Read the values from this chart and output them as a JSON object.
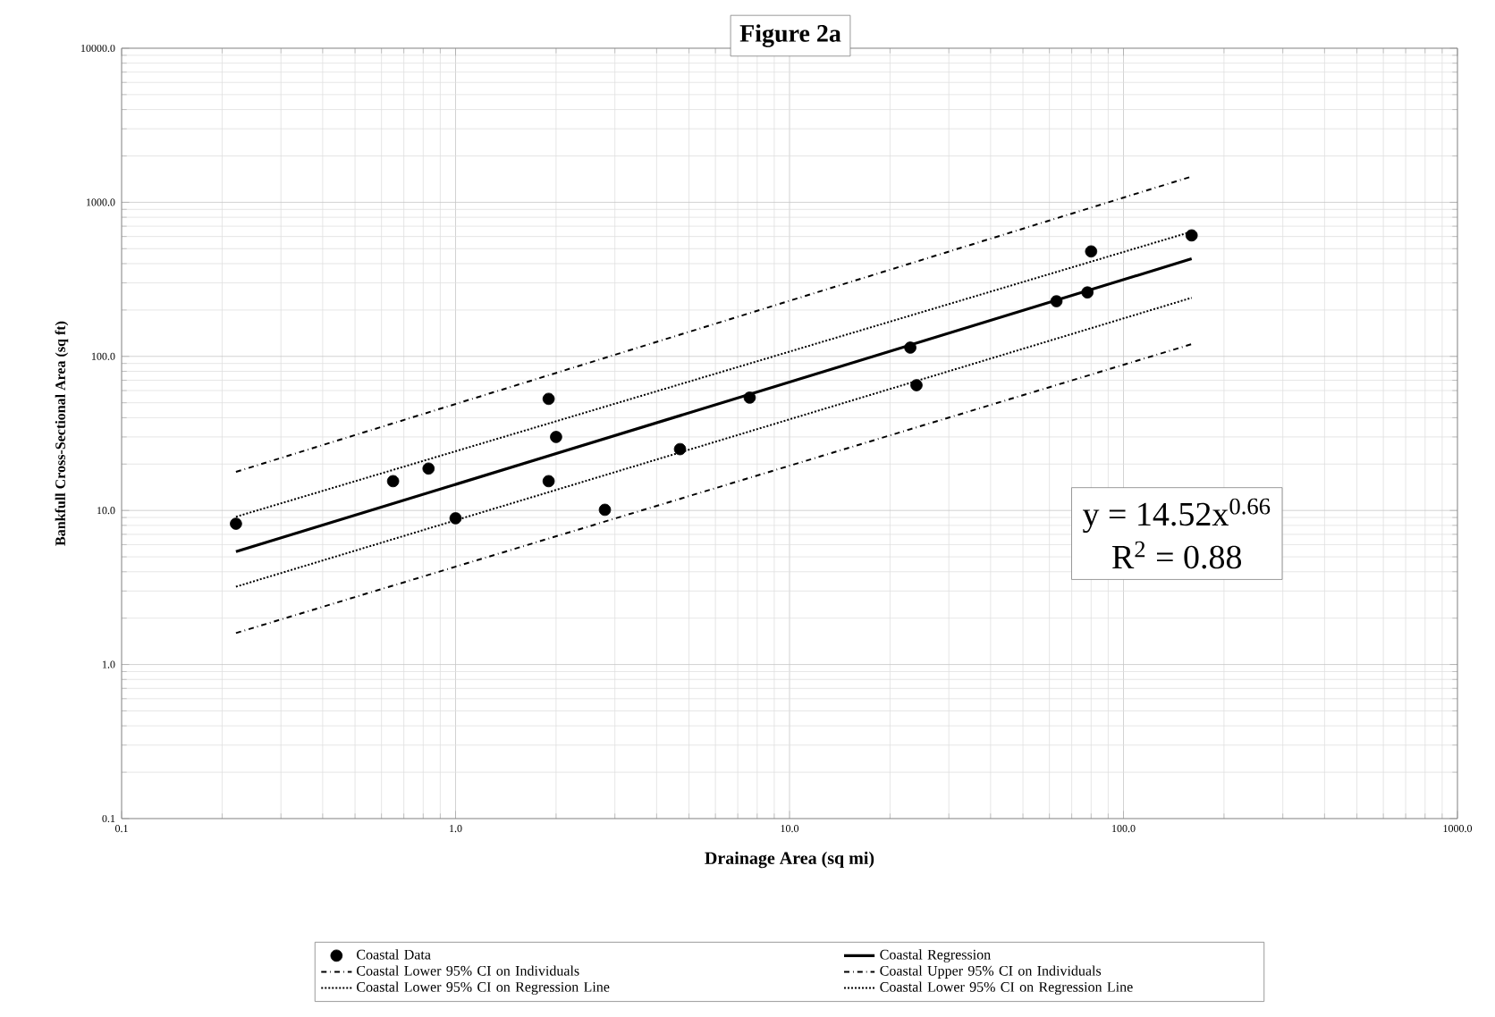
{
  "chart_data": {
    "type": "scatter",
    "title": "Figure 2a",
    "xlabel": "Drainage Area (sq mi)",
    "ylabel": "Bankfull Cross-Sectional Area (sq ft)",
    "log": "xy",
    "xlim": [
      0.1,
      1000
    ],
    "ylim": [
      0.1,
      10000
    ],
    "xticks": [
      {
        "value": 0.1,
        "label": "0.1"
      },
      {
        "value": 1,
        "label": "1.0"
      },
      {
        "value": 10,
        "label": "10.0"
      },
      {
        "value": 100,
        "label": "100.0"
      },
      {
        "value": 1000,
        "label": "1000.0"
      }
    ],
    "yticks": [
      {
        "value": 0.1,
        "label": "0.1"
      },
      {
        "value": 1,
        "label": "1.0"
      },
      {
        "value": 10,
        "label": "10.0"
      },
      {
        "value": 100,
        "label": "100.0"
      },
      {
        "value": 1000,
        "label": "1000.0"
      },
      {
        "value": 10000,
        "label": "10000.0"
      }
    ],
    "grid": true,
    "legend": "bottom",
    "annotations": [
      "y = 14.52x$^{0.66}$",
      "R$^{2}$ = 0.88"
    ],
    "series": [
      {
        "name": "Coastal Data",
        "marker": "circle",
        "color": "#000000",
        "x": [
          0.22,
          0.65,
          0.83,
          1.0,
          1.9,
          2.0,
          1.9,
          2.8,
          4.7,
          7.6,
          23,
          24,
          63,
          80,
          78,
          160
        ],
        "values": [
          8.2,
          15.5,
          18.7,
          8.9,
          53,
          30,
          15.5,
          10.1,
          25,
          54,
          114,
          65,
          228,
          480,
          260,
          610
        ]
      },
      {
        "name": "Coastal Regression",
        "type": "line",
        "line_style": "solid",
        "color": "#000000",
        "x": [
          0.22,
          160
        ],
        "values": [
          5.4,
          430
        ]
      },
      {
        "name": "Coastal Lower 95% CI on Individuals",
        "type": "line",
        "line_style": "dashed",
        "color": "#000000",
        "x": [
          0.22,
          160
        ],
        "values": [
          1.6,
          120
        ]
      },
      {
        "name": "Coastal Upper 95% CI on Individuals",
        "type": "line",
        "line_style": "dashed",
        "color": "#000000",
        "x": [
          0.22,
          160
        ],
        "values": [
          17.8,
          1470
        ]
      },
      {
        "name": "Coastal Lower 95% CI on Regression Line",
        "type": "line",
        "line_style": "dotted",
        "color": "#000000",
        "x": [
          0.22,
          160
        ],
        "values": [
          3.2,
          240
        ]
      },
      {
        "name": "Coastal Lower 95% CI on Regression Line",
        "type": "line",
        "line_style": "dotted",
        "color": "#000000",
        "x": [
          0.22,
          160
        ],
        "values": [
          9.1,
          645
        ]
      }
    ]
  }
}
